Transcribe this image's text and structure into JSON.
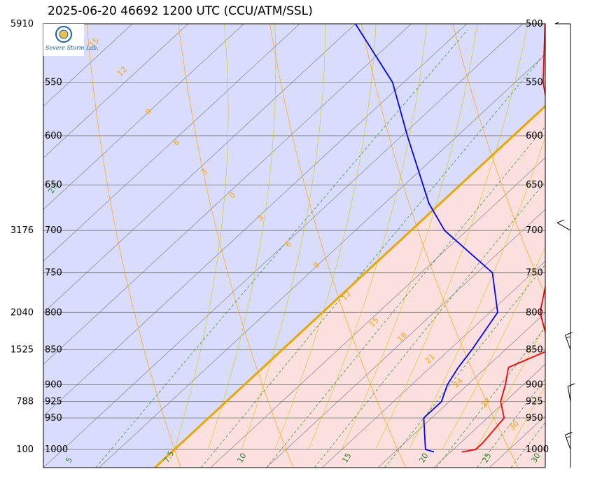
{
  "title": "2025-06-20 46692 1200 UTC (CCU/ATM/SSL)",
  "logo": {
    "text": "Severe Storm Lab.",
    "colors": [
      "#1a5fb4",
      "#2e7d32",
      "#c62828"
    ]
  },
  "colors": {
    "cold_region": "#d9dcfc",
    "warm_region": "#fce0e0",
    "temperature": "#ff0000",
    "dewpoint": "#0000ff",
    "freezing_isotherm": "#e8a800",
    "isobar": "#808080",
    "dry_adiabat": "#ffa500",
    "moist_adiabat": "#cccc00",
    "mixing_ratio": "#2a8a2a",
    "isotherm": "#777777"
  },
  "chart_data": {
    "type": "line",
    "diagram": "skew-t",
    "pressure_levels": [
      1000,
      950,
      925,
      900,
      850,
      800,
      750,
      700,
      650,
      600,
      550,
      500
    ],
    "height_labels": [
      {
        "p": 500,
        "label": "5910"
      },
      {
        "p": 700,
        "label": "3176"
      },
      {
        "p": 800,
        "label": "2040"
      },
      {
        "p": 850,
        "label": "1525"
      },
      {
        "p": 925,
        "label": "788"
      },
      {
        "p": 1000,
        "label": "100"
      }
    ],
    "ylim": [
      1030,
      500
    ],
    "series": [
      {
        "points": [
          {
            "p": 1004,
            "t": 26.0
          },
          {
            "p": 1000,
            "t": 27.0
          },
          {
            "p": 990,
            "t": 27.0
          },
          {
            "p": 950,
            "t": 26.5
          },
          {
            "p": 925,
            "t": 24.6
          },
          {
            "p": 900,
            "t": 23.4
          },
          {
            "p": 875,
            "t": 22.0
          },
          {
            "p": 850,
            "t": 24.0
          },
          {
            "p": 800,
            "t": 19.5
          },
          {
            "p": 750,
            "t": 16.4
          },
          {
            "p": 700,
            "t": 12.6
          },
          {
            "p": 670,
            "t": 9.8
          },
          {
            "p": 600,
            "t": 3.5
          },
          {
            "p": 550,
            "t": -2.5
          },
          {
            "p": 500,
            "t": -8.0
          }
        ]
      },
      {
        "points": [
          {
            "p": 1004,
            "t": 23.5
          },
          {
            "p": 1000,
            "t": 22.5
          },
          {
            "p": 950,
            "t": 19.3
          },
          {
            "p": 925,
            "t": 19.3
          },
          {
            "p": 900,
            "t": 18.2
          },
          {
            "p": 875,
            "t": 17.5
          },
          {
            "p": 850,
            "t": 17.0
          },
          {
            "p": 800,
            "t": 15.7
          },
          {
            "p": 750,
            "t": 11.4
          },
          {
            "p": 700,
            "t": 3.0
          },
          {
            "p": 670,
            "t": -1.0
          },
          {
            "p": 600,
            "t": -9.5
          },
          {
            "p": 550,
            "t": -16.0
          },
          {
            "p": 500,
            "t": -25.0
          }
        ]
      }
    ],
    "isotherms_major": [
      0
    ],
    "dry_adiabats_theta_c": [
      0,
      10,
      20,
      30,
      40,
      50,
      60,
      70,
      80,
      90,
      100,
      110,
      120,
      130
    ],
    "moist_adiabat_labels": [
      {
        "value": 15,
        "p": 520
      },
      {
        "value": 12,
        "p": 545
      },
      {
        "value": 9,
        "p": 580
      },
      {
        "value": 6,
        "p": 610
      },
      {
        "value": 3,
        "p": 640
      },
      {
        "value": 0,
        "p": 665
      },
      {
        "value": 3,
        "p": 690
      },
      {
        "value": 6,
        "p": 720
      },
      {
        "value": 9,
        "p": 745
      },
      {
        "value": 12,
        "p": 785
      },
      {
        "value": 15,
        "p": 820
      },
      {
        "value": 18,
        "p": 840
      },
      {
        "value": 21,
        "p": 870
      },
      {
        "value": 24,
        "p": 905
      },
      {
        "value": 27,
        "p": 935
      },
      {
        "value": 30,
        "p": 970
      }
    ],
    "mixing_ratio_labels": [
      {
        "value": "2.5",
        "p": 660
      },
      {
        "value": "5",
        "p": 1020
      },
      {
        "value": "7.5",
        "p": 1020
      },
      {
        "value": "10",
        "p": 1020
      },
      {
        "value": "15",
        "p": 1020
      },
      {
        "value": "20",
        "p": 1020
      },
      {
        "value": "25",
        "p": 1020
      },
      {
        "value": "30",
        "p": 1020
      }
    ],
    "wind_barbs": [
      {
        "p": 500,
        "dir": 270,
        "kt": 5
      },
      {
        "p": 700,
        "dir": 240,
        "kt": 10
      },
      {
        "p": 850,
        "dir": 200,
        "kt": 15
      },
      {
        "p": 925,
        "dir": 190,
        "kt": 10
      },
      {
        "p": 1000,
        "dir": 200,
        "kt": 15
      }
    ],
    "grid": true
  }
}
